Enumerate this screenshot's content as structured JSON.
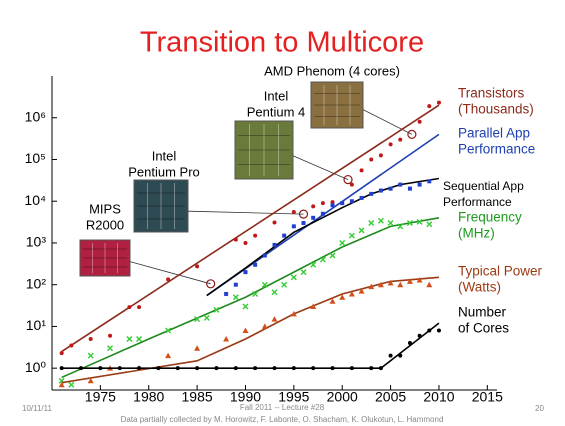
{
  "chart_data": {
    "type": "scatter",
    "title": "Transition to Multicore",
    "yscale": "log",
    "xlim": [
      1970,
      2016
    ],
    "ylim": [
      0.3,
      10000000
    ],
    "xticks": [
      1975,
      1980,
      1985,
      1990,
      1995,
      2000,
      2005,
      2010,
      2015
    ],
    "yticks": [
      {
        "value": 1,
        "label": "10⁰"
      },
      {
        "value": 10,
        "label": "10¹"
      },
      {
        "value": 100,
        "label": "10²"
      },
      {
        "value": 1000,
        "label": "10³"
      },
      {
        "value": 10000,
        "label": "10⁴"
      },
      {
        "value": 100000,
        "label": "10⁵"
      },
      {
        "value": 1000000,
        "label": "10⁶"
      }
    ],
    "series": [
      {
        "name_lines": [
          "Transistors",
          "(Thousands)"
        ],
        "color": "#8b2a1a",
        "marker": "dot",
        "marker_color": "#c01818",
        "x": [
          1971,
          1972,
          1974,
          1976,
          1978,
          1979,
          1982,
          1985,
          1989,
          1990,
          1991,
          1993,
          1995,
          1997,
          1998,
          1999,
          2001,
          2002,
          2003,
          2004,
          2005,
          2006,
          2008,
          2009,
          2010
        ],
        "values": [
          2.3,
          3.5,
          5,
          6,
          29,
          29,
          134,
          275,
          1200,
          1000,
          1500,
          3100,
          5500,
          7500,
          9000,
          9500,
          25000,
          55000,
          100000,
          125000,
          230000,
          300000,
          800000,
          1900000,
          2300000
        ],
        "trend_x": [
          1971,
          2010
        ],
        "trend_values": [
          2.5,
          2000000
        ]
      },
      {
        "name_lines": [
          "Parallel App",
          "Performance"
        ],
        "color": "#1f3fb0",
        "marker": "none",
        "trend_x": [
          1986,
          2010
        ],
        "trend_values": [
          55,
          400000
        ]
      },
      {
        "name_lines": [
          "Sequential App",
          "Performance"
        ],
        "color": "#000000",
        "marker": "square",
        "marker_color": "#1f3fd0",
        "x": [
          1988,
          1989,
          1990,
          1991,
          1992,
          1993,
          1994,
          1995,
          1996,
          1997,
          1998,
          1999,
          2000,
          2001,
          2002,
          2003,
          2004,
          2005,
          2006,
          2007,
          2008,
          2009
        ],
        "values": [
          60,
          100,
          200,
          300,
          500,
          900,
          1500,
          2500,
          3000,
          4000,
          5000,
          8000,
          9000,
          10000,
          12000,
          15000,
          18000,
          20000,
          25000,
          20000,
          25000,
          30000
        ],
        "trend_x": [
          1986,
          1990,
          1995,
          2000,
          2003,
          2006,
          2010
        ],
        "trend_values": [
          55,
          250,
          1800,
          7000,
          15000,
          25000,
          35000
        ]
      },
      {
        "name_lines": [
          "Frequency",
          "(MHz)"
        ],
        "color": "#1e8a1e",
        "marker": "x",
        "marker_color": "#33cc33",
        "x": [
          1971,
          1972,
          1974,
          1976,
          1978,
          1979,
          1982,
          1985,
          1986,
          1987,
          1989,
          1990,
          1991,
          1992,
          1993,
          1994,
          1995,
          1996,
          1997,
          1998,
          1999,
          2000,
          2001,
          2002,
          2003,
          2004,
          2005,
          2006,
          2007,
          2008,
          2009
        ],
        "values": [
          0.5,
          0.4,
          2,
          3,
          5,
          5,
          8,
          15,
          16,
          25,
          50,
          30,
          60,
          100,
          66,
          100,
          150,
          200,
          300,
          400,
          500,
          1000,
          1500,
          2000,
          3000,
          3400,
          3000,
          2500,
          3000,
          3200,
          2800
        ],
        "trend_x": [
          1971,
          1980,
          1990,
          2000,
          2005,
          2010
        ],
        "trend_values": [
          0.6,
          5,
          50,
          800,
          2500,
          4000
        ]
      },
      {
        "name_lines": [
          "Typical Power",
          "(Watts)"
        ],
        "color": "#9a3a14",
        "marker": "triangle",
        "marker_color": "#d4501a",
        "x": [
          1971,
          1974,
          1976,
          1979,
          1982,
          1985,
          1988,
          1990,
          1992,
          1993,
          1995,
          1997,
          1999,
          2000,
          2001,
          2002,
          2003,
          2004,
          2005,
          2006,
          2007,
          2008,
          2009
        ],
        "values": [
          0.4,
          0.5,
          1,
          1,
          2,
          3,
          5,
          8,
          10,
          15,
          20,
          30,
          40,
          50,
          60,
          70,
          90,
          100,
          110,
          100,
          120,
          130,
          100
        ],
        "trend_x": [
          1971,
          1985,
          1990,
          1995,
          2000,
          2005,
          2010
        ],
        "trend_values": [
          0.45,
          1.5,
          5,
          20,
          60,
          120,
          150
        ]
      },
      {
        "name_lines": [
          "Number",
          "of Cores"
        ],
        "color": "#000000",
        "marker": "dot",
        "marker_color": "#000000",
        "x": [
          1971,
          1973,
          1975,
          1977,
          1979,
          1981,
          1983,
          1985,
          1987,
          1989,
          1991,
          1993,
          1995,
          1997,
          1999,
          2001,
          2003,
          2004,
          2005,
          2006,
          2007,
          2008,
          2009,
          2010
        ],
        "values": [
          1,
          1,
          1,
          1,
          1,
          1,
          1,
          1,
          1,
          1,
          1,
          1,
          1,
          1,
          1,
          1,
          1,
          1,
          2,
          2,
          4,
          6,
          8,
          8
        ],
        "trend_x": [
          1971,
          2004,
          2010
        ],
        "trend_values": [
          1,
          1,
          12
        ]
      }
    ],
    "annotations": [
      {
        "lines": [
          "MIPS",
          "R2000"
        ],
        "x": 1986.4,
        "value": 105
      },
      {
        "lines": [
          "Intel",
          "Pentium Pro"
        ],
        "x": 1996,
        "value": 4900
      },
      {
        "lines": [
          "Intel",
          "Pentium 4"
        ],
        "x": 2000.6,
        "value": 33000
      },
      {
        "lines": [
          "AMD Phenom (4 cores)"
        ],
        "x": 2007.2,
        "value": 400000
      }
    ],
    "footer": {
      "date": "10/11/11",
      "lecture": "Fall 2011 -- Lecture #28",
      "page": "20",
      "credit": "Data partially collected by M. Horowitz, F. Labonte, O. Shacham, K. Olukotun, L. Hammond"
    }
  }
}
